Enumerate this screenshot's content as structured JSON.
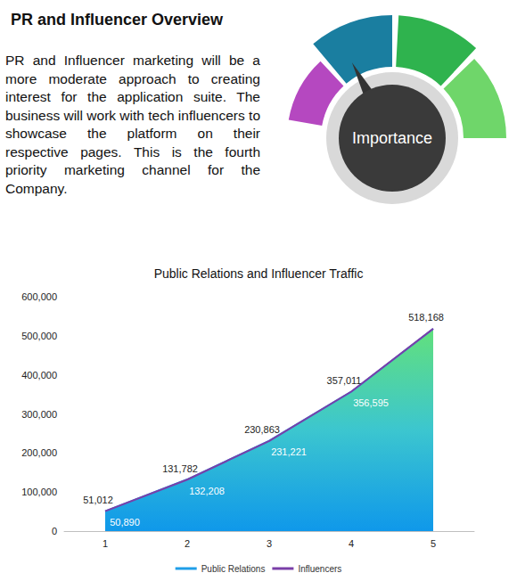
{
  "header": {
    "title": "PR and Influencer Overview",
    "text": "PR and Influencer marketing will be a more moderate approach to creating interest for the application suite. The business will work with tech influencers to showcase the platform on their respective pages. This is the fourth priority marketing channel for the Company."
  },
  "gauge": {
    "label": "Importance"
  },
  "chart_data": {
    "type": "line",
    "title": "Public Relations and Influencer Traffic",
    "categories": [
      "1",
      "2",
      "3",
      "4",
      "5"
    ],
    "series": [
      {
        "name": "Public Relations",
        "color": "#1f9ee8",
        "values": [
          50890,
          132208,
          231221,
          356595,
          518000
        ],
        "value_labels": [
          "50,890",
          "132,208",
          "231,221",
          "356,595",
          null
        ]
      },
      {
        "name": "Influencers",
        "color": "#7a3fa8",
        "values": [
          51012,
          131782,
          230863,
          357011,
          518168
        ],
        "value_labels": [
          "51,012",
          "131,782",
          "230,863",
          "357,011",
          "518,168"
        ]
      }
    ],
    "ylim": [
      0,
      600000
    ],
    "yticks": [
      0,
      {
        "value": 100000,
        "label": "100,000"
      },
      {
        "value": 200000,
        "label": "200,000"
      },
      {
        "value": 300000,
        "label": "300,000"
      },
      {
        "value": 400000,
        "label": "400,000"
      },
      {
        "value": 500000,
        "label": "500,000"
      },
      {
        "value": 600000,
        "label": "600,000"
      }
    ],
    "grid": false,
    "legend": "bottom",
    "data_labels": true
  }
}
